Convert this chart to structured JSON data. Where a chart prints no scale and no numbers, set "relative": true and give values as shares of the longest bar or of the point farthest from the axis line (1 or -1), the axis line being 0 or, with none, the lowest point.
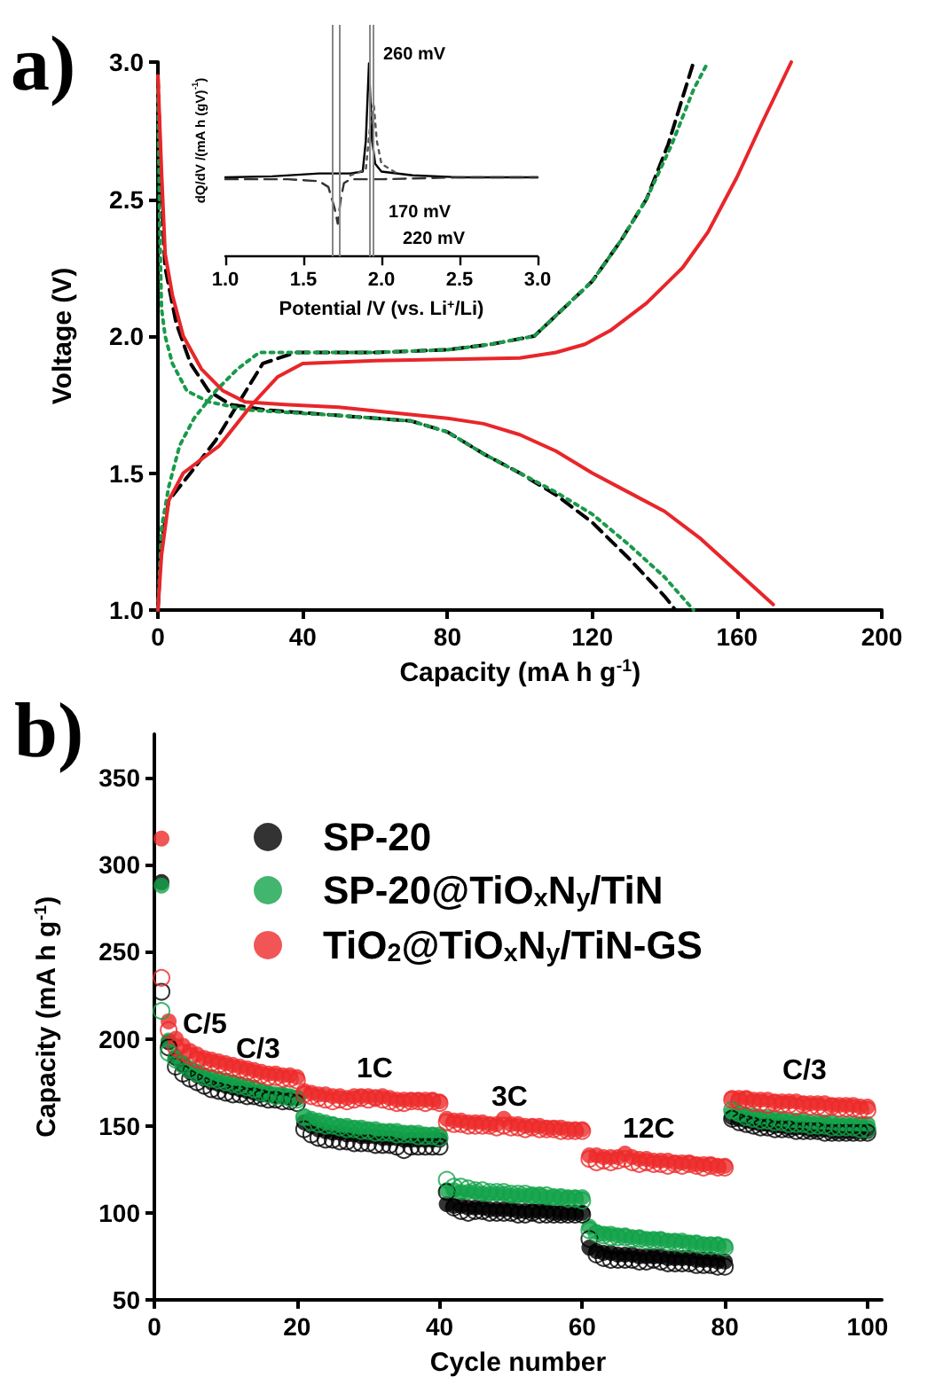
{
  "chart_data": [
    {
      "type": "line",
      "xlabel": "Capacity (mA h g$^{-1}$)",
      "ylabel": "Voltage (V)",
      "annotations": [
        "a)"
      ],
      "xlim": [
        0,
        200
      ],
      "ylim": [
        1,
        3
      ],
      "xticks": [
        0,
        40,
        80,
        120,
        160,
        200
      ],
      "yticks": [
        {
          "value": 1,
          "label": "1.0"
        },
        1.5,
        {
          "value": 2,
          "label": "2.0"
        },
        2.5,
        {
          "value": 3,
          "label": "3.0"
        }
      ],
      "grid": false,
      "legend": false,
      "marker": "none",
      "series": [
        {
          "color": "#000000",
          "line_style": "dashed",
          "x": [
            0,
            1,
            2,
            5,
            9,
            14,
            20,
            30,
            50,
            70,
            80,
            90,
            100,
            110,
            120,
            130,
            140,
            143
          ],
          "values": [
            2.95,
            2.5,
            2.25,
            2.05,
            1.9,
            1.8,
            1.75,
            1.73,
            1.71,
            1.69,
            1.65,
            1.57,
            1.5,
            1.42,
            1.32,
            1.19,
            1.05,
            1.0
          ]
        },
        {
          "color": "#000000",
          "line_style": "dashed",
          "x": [
            0,
            1,
            3,
            9,
            16,
            22,
            29,
            38,
            60,
            80,
            92,
            104,
            112,
            120,
            128,
            135,
            141,
            148
          ],
          "values": [
            1.0,
            1.25,
            1.4,
            1.5,
            1.62,
            1.75,
            1.9,
            1.94,
            1.94,
            1.95,
            1.97,
            2.0,
            2.1,
            2.2,
            2.35,
            2.5,
            2.7,
            3.0
          ]
        },
        {
          "color": "#1a9a4a",
          "line_style": "dotted",
          "x": [
            0,
            0.5,
            1,
            2,
            4,
            8,
            14,
            25,
            50,
            70,
            80,
            90,
            100,
            110,
            120,
            130,
            140,
            148
          ],
          "values": [
            2.9,
            2.4,
            2.1,
            2.0,
            1.9,
            1.8,
            1.76,
            1.73,
            1.71,
            1.69,
            1.65,
            1.57,
            1.5,
            1.43,
            1.35,
            1.24,
            1.12,
            1.0
          ]
        },
        {
          "color": "#1a9a4a",
          "line_style": "dotted",
          "x": [
            0,
            1,
            3,
            6,
            10,
            16,
            22,
            28,
            60,
            80,
            92,
            104,
            112,
            120,
            128,
            135,
            142,
            148,
            152
          ],
          "values": [
            1.0,
            1.3,
            1.45,
            1.6,
            1.7,
            1.8,
            1.88,
            1.94,
            1.94,
            1.95,
            1.97,
            2.0,
            2.1,
            2.2,
            2.35,
            2.5,
            2.7,
            2.9,
            3.0
          ]
        },
        {
          "color": "#e8262a",
          "line_style": "solid",
          "x": [
            0,
            1,
            2,
            4,
            7,
            12,
            18,
            24,
            35,
            50,
            65,
            80,
            90,
            100,
            110,
            120,
            130,
            140,
            150,
            160,
            170
          ],
          "values": [
            2.95,
            2.6,
            2.3,
            2.15,
            2.0,
            1.88,
            1.8,
            1.76,
            1.75,
            1.74,
            1.72,
            1.7,
            1.68,
            1.64,
            1.58,
            1.5,
            1.43,
            1.36,
            1.26,
            1.14,
            1.02
          ]
        },
        {
          "color": "#e8262a",
          "line_style": "solid",
          "x": [
            0,
            1,
            3,
            7,
            17,
            26,
            33,
            40,
            60,
            80,
            100,
            110,
            118,
            125,
            135,
            145,
            152,
            160,
            167,
            175
          ],
          "values": [
            1.0,
            1.2,
            1.4,
            1.5,
            1.6,
            1.75,
            1.85,
            1.9,
            1.91,
            1.915,
            1.92,
            1.94,
            1.97,
            2.02,
            2.12,
            2.25,
            2.38,
            2.58,
            2.78,
            3.0
          ]
        }
      ]
    },
    {
      "type": "line",
      "relative": true,
      "xlabel": "Potential /V (vs. Li$^{+}$/Li)",
      "ylabel": "dQ/dV /(mA h (gV)$^{-1}$)",
      "annotations": [
        "260 mV",
        "170 mV",
        "220 mV"
      ],
      "xlim": [
        1,
        3
      ],
      "xticks": [
        {
          "value": 1,
          "label": "1.0"
        },
        1.5,
        {
          "value": 2,
          "label": "2.0"
        },
        2.5,
        {
          "value": 3,
          "label": "3.0"
        }
      ],
      "grid": false,
      "legend": false,
      "marker": "none",
      "ref_lines": [
        {
          "axis": "x",
          "value": 1.69,
          "color": "#888888"
        },
        {
          "axis": "x",
          "value": 1.73,
          "color": "#888888"
        },
        {
          "axis": "x",
          "value": 1.92,
          "color": "#888888"
        },
        {
          "axis": "x",
          "value": 1.95,
          "color": "#888888"
        }
      ],
      "series": [
        {
          "color": "#000000",
          "line_style": "solid",
          "x": [
            1.0,
            1.3,
            1.6,
            1.8,
            1.88,
            1.9,
            1.92,
            1.94,
            1.96,
            2.0,
            2.2,
            2.5,
            3.0
          ],
          "values": [
            0.41,
            0.415,
            0.43,
            0.43,
            0.44,
            0.6,
            1.0,
            0.6,
            0.48,
            0.44,
            0.42,
            0.41,
            0.41
          ]
        },
        {
          "color": "#333333",
          "line_style": "dashed",
          "x": [
            1.0,
            1.4,
            1.6,
            1.66,
            1.7,
            1.72,
            1.74,
            1.76,
            1.8,
            2.0,
            2.5,
            3.0
          ],
          "values": [
            0.4,
            0.4,
            0.39,
            0.36,
            0.25,
            0.17,
            0.3,
            0.38,
            0.4,
            0.4,
            0.41,
            0.41
          ]
        },
        {
          "color": "#555555",
          "line_style": "dotted",
          "x": [
            1.8,
            1.9,
            1.93,
            1.95,
            1.97,
            2.0,
            2.1
          ],
          "values": [
            0.42,
            0.45,
            0.7,
            0.8,
            0.6,
            0.48,
            0.43
          ]
        }
      ]
    },
    {
      "type": "scatter",
      "xlabel": "Cycle number",
      "ylabel": "Capacity (mA h g$^{-1}$)",
      "annotations": [
        "b)",
        "C/5",
        "C/3",
        "1C",
        "3C",
        "12C",
        "C/3"
      ],
      "xlim": [
        0,
        102
      ],
      "ylim": [
        50,
        375
      ],
      "xticks": [
        0,
        20,
        40,
        60,
        80,
        100
      ],
      "yticks": [
        50,
        100,
        150,
        200,
        250,
        300,
        350
      ],
      "grid": false,
      "legend": "top",
      "marker": "circle",
      "x": [
        1,
        2,
        3,
        4,
        5,
        6,
        7,
        8,
        9,
        10,
        11,
        12,
        13,
        14,
        15,
        16,
        17,
        18,
        19,
        20,
        21,
        22,
        23,
        24,
        25,
        26,
        27,
        28,
        29,
        30,
        31,
        32,
        33,
        34,
        35,
        36,
        37,
        38,
        39,
        40,
        41,
        42,
        43,
        44,
        45,
        46,
        47,
        48,
        49,
        50,
        51,
        52,
        53,
        54,
        55,
        56,
        57,
        58,
        59,
        60,
        61,
        62,
        63,
        64,
        65,
        66,
        67,
        68,
        69,
        70,
        71,
        72,
        73,
        74,
        75,
        76,
        77,
        78,
        79,
        80,
        81,
        82,
        83,
        84,
        85,
        86,
        87,
        88,
        89,
        90,
        91,
        92,
        93,
        94,
        95,
        96,
        97,
        98,
        99,
        100
      ],
      "series": [
        {
          "name": "SP-20",
          "color": "#000000",
          "values": [
            290,
            198,
            189,
            185,
            181,
            179,
            177,
            175,
            174,
            173,
            172,
            171,
            170,
            169,
            168,
            168,
            167,
            167,
            166,
            166,
            152,
            150,
            148,
            147,
            146,
            146,
            145,
            145,
            144,
            144,
            144,
            143,
            143,
            143,
            142,
            142,
            142,
            142,
            142,
            142,
            105,
            104,
            104,
            103,
            103,
            103,
            102,
            102,
            102,
            102,
            101,
            101,
            101,
            101,
            101,
            100,
            100,
            100,
            100,
            100,
            80,
            78,
            77,
            77,
            76,
            76,
            76,
            75,
            75,
            75,
            75,
            74,
            74,
            74,
            74,
            73,
            73,
            73,
            72,
            72,
            155,
            154,
            153,
            152,
            151,
            151,
            150,
            150,
            149,
            149,
            149,
            148,
            148,
            148,
            147,
            147,
            147,
            147,
            147,
            147
          ]
        },
        {
          "name": "SP-20@TiO$_{x}$N$_{y}$/TiN",
          "color": "#13a24a",
          "values": [
            288,
            199,
            190,
            186,
            183,
            181,
            179,
            178,
            177,
            176,
            175,
            174,
            173,
            172,
            170,
            169,
            168,
            168,
            167,
            166,
            155,
            154,
            153,
            152,
            151,
            150,
            150,
            149,
            149,
            148,
            148,
            147,
            147,
            147,
            146,
            146,
            146,
            145,
            145,
            145,
            113,
            113,
            112,
            112,
            112,
            111,
            111,
            111,
            111,
            110,
            110,
            110,
            110,
            110,
            109,
            109,
            109,
            109,
            109,
            109,
            92,
            89,
            88,
            88,
            87,
            87,
            86,
            86,
            85,
            85,
            85,
            84,
            84,
            84,
            83,
            83,
            82,
            82,
            82,
            81,
            158,
            157,
            156,
            156,
            155,
            155,
            154,
            154,
            153,
            153,
            153,
            152,
            152,
            152,
            152,
            151,
            151,
            151,
            151,
            151
          ]
        },
        {
          "name": "TiO$_{2}$@TiO$_{x}$N$_{y}$/TiN-GS",
          "color": "#ee2a2a",
          "values": [
            315,
            210,
            200,
            196,
            193,
            191,
            189,
            188,
            187,
            186,
            185,
            184,
            183,
            182,
            181,
            180,
            180,
            179,
            179,
            178,
            170,
            169,
            168,
            168,
            167,
            167,
            166,
            167,
            167,
            167,
            166,
            167,
            166,
            165,
            165,
            165,
            165,
            165,
            165,
            164,
            154,
            153,
            153,
            152,
            152,
            152,
            151,
            151,
            154,
            151,
            151,
            150,
            150,
            150,
            149,
            149,
            149,
            148,
            148,
            148,
            133,
            133,
            132,
            132,
            132,
            134,
            132,
            131,
            131,
            130,
            130,
            130,
            129,
            129,
            129,
            128,
            128,
            128,
            127,
            127,
            166,
            166,
            166,
            165,
            165,
            165,
            164,
            164,
            164,
            164,
            163,
            163,
            163,
            163,
            162,
            162,
            162,
            162,
            161,
            161
          ]
        },
        {
          "color": "#000000",
          "values": [
            227,
            195,
            184,
            180,
            177,
            175,
            173,
            171,
            170,
            169,
            168,
            168,
            167,
            167,
            166,
            165,
            165,
            164,
            164,
            163,
            148,
            145,
            143,
            142,
            142,
            141,
            141,
            140,
            140,
            140,
            139,
            139,
            139,
            138,
            136,
            138,
            138,
            138,
            138,
            138,
            112,
            103,
            101,
            100,
            101,
            101,
            100,
            100,
            100,
            100,
            99,
            99,
            100,
            99,
            99,
            99,
            99,
            99,
            99,
            99,
            85,
            76,
            74,
            73,
            73,
            73,
            73,
            72,
            72,
            73,
            72,
            71,
            71,
            71,
            71,
            70,
            70,
            70,
            69,
            69,
            154,
            152,
            151,
            150,
            149,
            149,
            148,
            148,
            148,
            147,
            147,
            147,
            147,
            146,
            146,
            146,
            146,
            146,
            146,
            146
          ]
        },
        {
          "color": "#13a24a",
          "values": [
            216,
            192,
            188,
            185,
            182,
            180,
            178,
            177,
            176,
            175,
            174,
            173,
            172,
            171,
            169,
            168,
            167,
            167,
            166,
            165,
            155,
            152,
            151,
            150,
            150,
            149,
            148,
            148,
            147,
            147,
            146,
            146,
            146,
            145,
            145,
            145,
            144,
            144,
            144,
            143,
            119,
            115,
            115,
            114,
            113,
            113,
            112,
            112,
            112,
            111,
            111,
            111,
            110,
            110,
            110,
            109,
            109,
            108,
            108,
            107,
            90,
            88,
            87,
            86,
            86,
            86,
            85,
            85,
            84,
            84,
            84,
            83,
            83,
            82,
            82,
            82,
            81,
            81,
            81,
            80,
            159,
            157,
            155,
            154,
            153,
            153,
            152,
            152,
            151,
            151,
            151,
            150,
            150,
            150,
            149,
            149,
            149,
            149,
            148,
            148
          ]
        },
        {
          "color": "#ee2a2a",
          "values": [
            235,
            205,
            195,
            192,
            190,
            188,
            187,
            186,
            185,
            184,
            183,
            182,
            181,
            180,
            179,
            178,
            178,
            177,
            177,
            176,
            168,
            167,
            166,
            165,
            164,
            165,
            164,
            165,
            166,
            165,
            166,
            165,
            164,
            163,
            163,
            164,
            164,
            163,
            164,
            163,
            152,
            151,
            151,
            150,
            150,
            150,
            150,
            149,
            150,
            149,
            149,
            148,
            149,
            148,
            148,
            148,
            147,
            147,
            147,
            147,
            131,
            129,
            130,
            129,
            130,
            131,
            129,
            128,
            129,
            128,
            128,
            127,
            128,
            127,
            128,
            127,
            126,
            127,
            126,
            126,
            165,
            164,
            165,
            163,
            163,
            162,
            163,
            162,
            162,
            161,
            162,
            161,
            161,
            160,
            161,
            160,
            160,
            160,
            159,
            159
          ]
        }
      ]
    }
  ]
}
